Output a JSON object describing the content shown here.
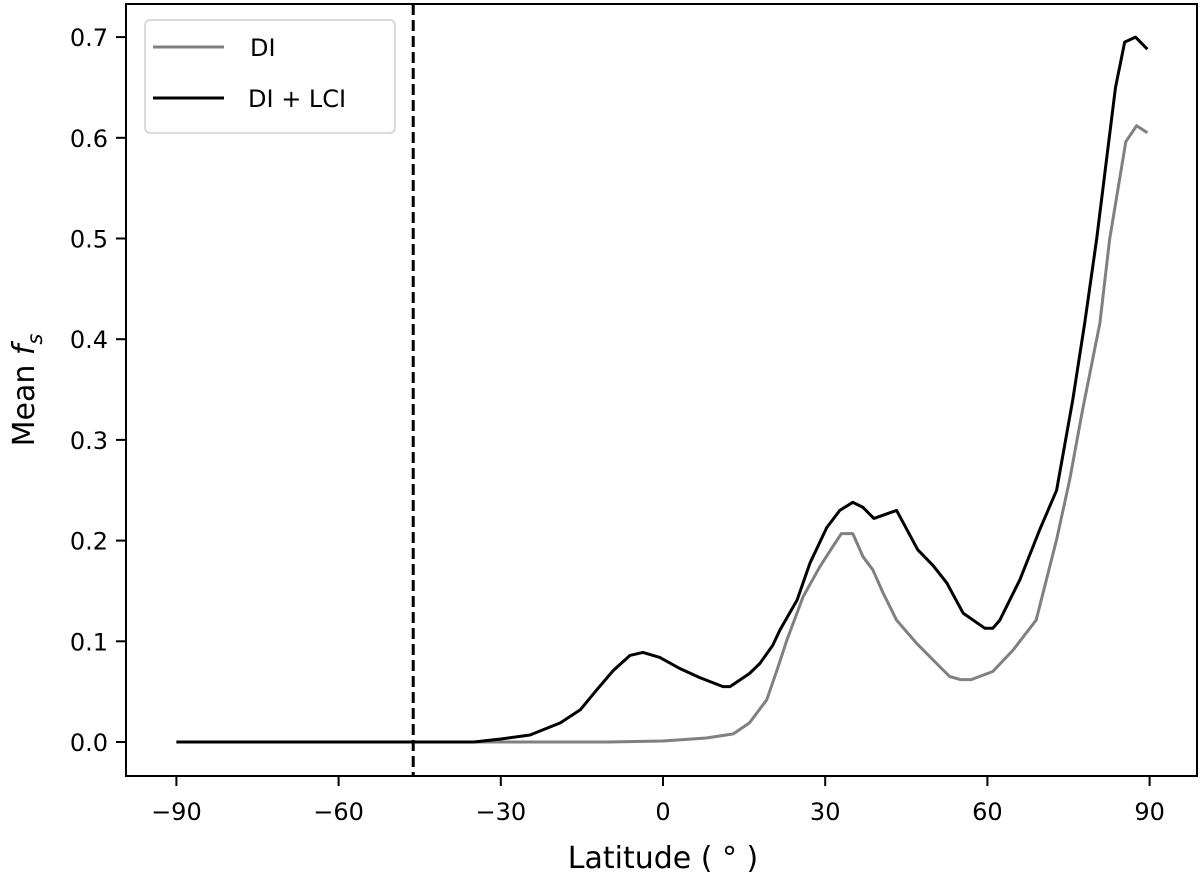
{
  "chart_data": {
    "type": "line",
    "title": "",
    "xlabel": "Latitude ( ° )",
    "ylabel": "Mean f_s",
    "ylabel_parts": {
      "main": "Mean ",
      "italic": "f",
      "subscript": "s"
    },
    "xlim": [
      -97,
      101
    ],
    "ylim": [
      -0.034,
      0.733
    ],
    "xticks": [
      -90,
      -60,
      -30,
      0,
      30,
      60,
      90
    ],
    "xtick_labels": [
      "−90",
      "−60",
      "−30",
      "0",
      "30",
      "60",
      "90"
    ],
    "yticks": [
      0.0,
      0.1,
      0.2,
      0.3,
      0.4,
      0.5,
      0.6,
      0.7
    ],
    "ytick_labels": [
      "0.0",
      "0.1",
      "0.2",
      "0.3",
      "0.4",
      "0.5",
      "0.6",
      "0.7"
    ],
    "grid": false,
    "legend_position": "upper left",
    "vertical_line": {
      "x": -46.2,
      "style": "dashed",
      "color": "#000000"
    },
    "series": [
      {
        "name": "DI",
        "color": "#808080",
        "x": [
          -90,
          -60,
          -30,
          -10,
          0,
          8,
          13,
          16,
          19.2,
          21.3,
          22.9,
          25.9,
          29,
          31.4,
          33,
          35.1,
          37,
          38.8,
          40.7,
          43.2,
          46.9,
          50.6,
          53,
          55,
          57,
          61,
          64.7,
          69,
          72.8,
          75.2,
          77.6,
          80.8,
          82.6,
          85.6,
          87.6,
          89.6
        ],
        "values": [
          0.0,
          0.0,
          0.0,
          0.0,
          0.001,
          0.004,
          0.008,
          0.019,
          0.042,
          0.075,
          0.101,
          0.144,
          0.174,
          0.194,
          0.207,
          0.207,
          0.184,
          0.171,
          0.148,
          0.121,
          0.098,
          0.078,
          0.065,
          0.062,
          0.062,
          0.07,
          0.091,
          0.121,
          0.201,
          0.26,
          0.33,
          0.416,
          0.499,
          0.596,
          0.612,
          0.605
        ]
      },
      {
        "name": "DI + LCI",
        "color": "#000000",
        "x": [
          -90,
          -60,
          -35,
          -30,
          -24.6,
          -19,
          -15.3,
          -12.2,
          -9.2,
          -6.1,
          -3.7,
          -0.6,
          3.1,
          6.8,
          11.1,
          12.4,
          16,
          17.9,
          20.3,
          21.6,
          24.8,
          27.2,
          30.3,
          32.7,
          35.1,
          37,
          39,
          43.2,
          47.1,
          50,
          52.5,
          55.5,
          59.5,
          61,
          62.3,
          66,
          69.7,
          72.8,
          75.8,
          78,
          80.2,
          83.7,
          85.4,
          87.4,
          89.6
        ],
        "values": [
          0.0,
          0.0,
          0.0,
          0.003,
          0.007,
          0.019,
          0.032,
          0.052,
          0.071,
          0.086,
          0.089,
          0.084,
          0.073,
          0.064,
          0.055,
          0.055,
          0.068,
          0.078,
          0.096,
          0.111,
          0.141,
          0.178,
          0.213,
          0.23,
          0.238,
          0.233,
          0.222,
          0.23,
          0.191,
          0.175,
          0.158,
          0.128,
          0.113,
          0.113,
          0.121,
          0.161,
          0.211,
          0.25,
          0.34,
          0.416,
          0.499,
          0.65,
          0.695,
          0.7,
          0.688
        ]
      }
    ]
  }
}
